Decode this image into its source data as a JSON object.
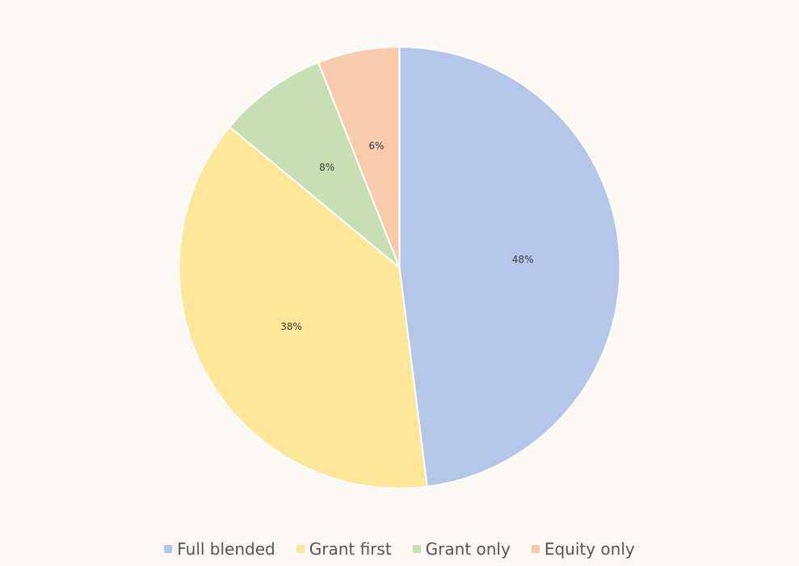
{
  "chart_data": {
    "type": "pie",
    "categories": [
      "Full blended",
      "Grant first",
      "Grant only",
      "Equity only"
    ],
    "values": [
      48,
      38,
      8,
      6
    ],
    "labels": [
      "48%",
      "38%",
      "8%",
      "6%"
    ],
    "colors": [
      "#b4c7e8",
      "#ffe699",
      "#c6e0b4",
      "#f8cbad"
    ],
    "start_angle_deg": 0,
    "direction": "clockwise",
    "legend_position": "bottom"
  }
}
